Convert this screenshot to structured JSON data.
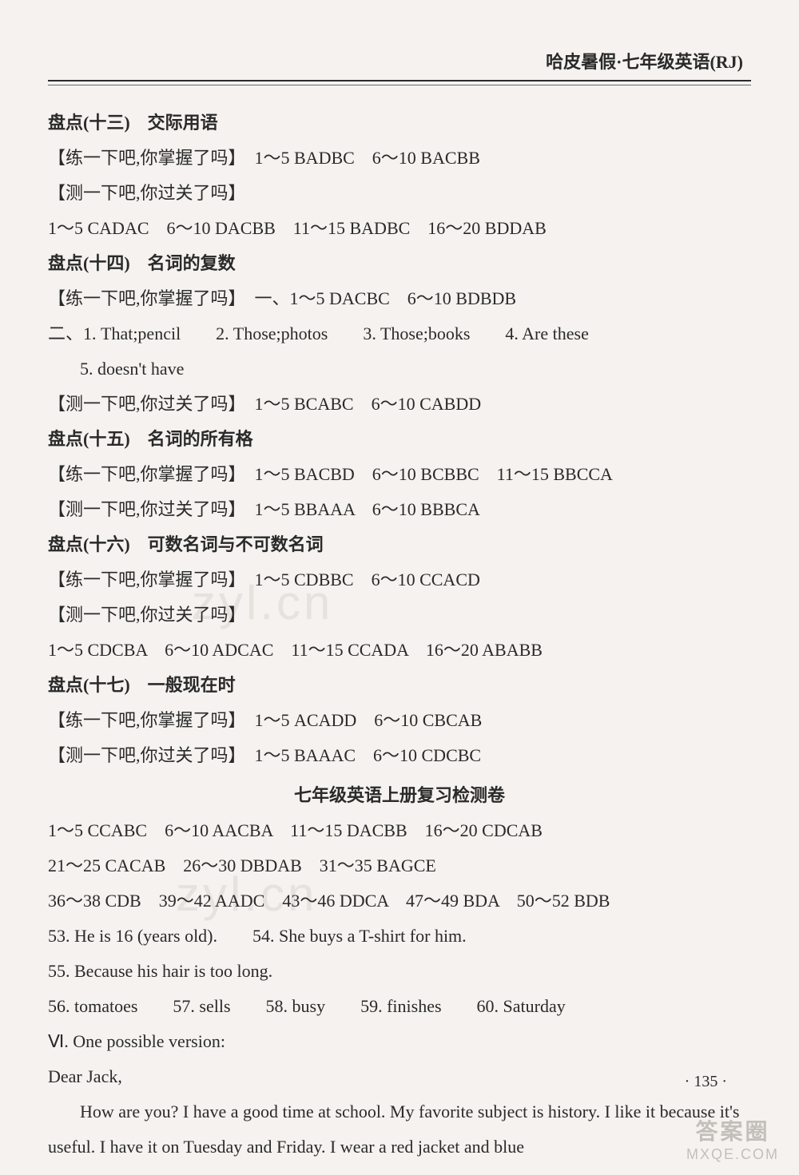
{
  "header": "哈皮暑假·七年级英语(RJ)",
  "lines": {
    "l1": "盘点(十三)　交际用语",
    "l2": "【练一下吧,你掌握了吗】　1～5 BADBC　6～10 BACBB",
    "l3": "【测一下吧,你过关了吗】",
    "l4": "1～5 CADAC　6～10 DACBB　11～15 BADBC　16～20 BDDAB",
    "l5": "盘点(十四)　名词的复数",
    "l6": "【练一下吧,你掌握了吗】　一、1～5 DACBC　6～10 BDBDB",
    "l7": "二、1. That;pencil　　2. Those;photos　　3. Those;books　　4. Are these",
    "l8": "5. doesn't have",
    "l9": "【测一下吧,你过关了吗】　1～5 BCABC　6～10 CABDD",
    "l10": "盘点(十五)　名词的所有格",
    "l11": "【练一下吧,你掌握了吗】　1～5 BACBD　6～10 BCBBC　11～15 BBCCA",
    "l12": "【测一下吧,你过关了吗】　1～5 BBAAA　6～10 BBBCA",
    "l13": "盘点(十六)　可数名词与不可数名词",
    "l14": "【练一下吧,你掌握了吗】　1～5 CDBBC　6～10 CCACD",
    "l15": "【测一下吧,你过关了吗】",
    "l16": "1～5 CDCBA　6～10 ADCAC　11～15 CCADA　16～20 ABABB",
    "l17": "盘点(十七)　一般现在时",
    "l18": "【练一下吧,你掌握了吗】　1～5 ACADD　6～10 CBCAB",
    "l19": "【测一下吧,你过关了吗】　1～5 BAAAC　6～10 CDCBC",
    "l20": "七年级英语上册复习检测卷",
    "l21": "1～5 CCABC　6～10 AACBA　11～15 DACBB　16～20 CDCAB",
    "l22": "21～25 CACAB　26～30 DBDAB　31～35 BAGCE",
    "l23": "36～38 CDB　39～42 AADC　43～46 DDCA　47～49 BDA　50～52 BDB",
    "l24": "53. He is 16 (years old).　　54. She buys a T-shirt for him.",
    "l25": "55. Because his hair is too long.",
    "l26": "56. tomatoes　　57. sells　　58. busy　　59. finishes　　60. Saturday",
    "l27": "Ⅵ. One possible version:",
    "l28": "Dear Jack,",
    "l29": "How are you? I have a good time at school. My favorite subject is history. I like it because it's useful. I have it on Tuesday and Friday. I wear a red jacket and blue"
  },
  "page_number": "· 135 ·",
  "watermark": {
    "top": "答案圈",
    "bottom": "MXQE.COM",
    "mid": "zyl.cn"
  }
}
